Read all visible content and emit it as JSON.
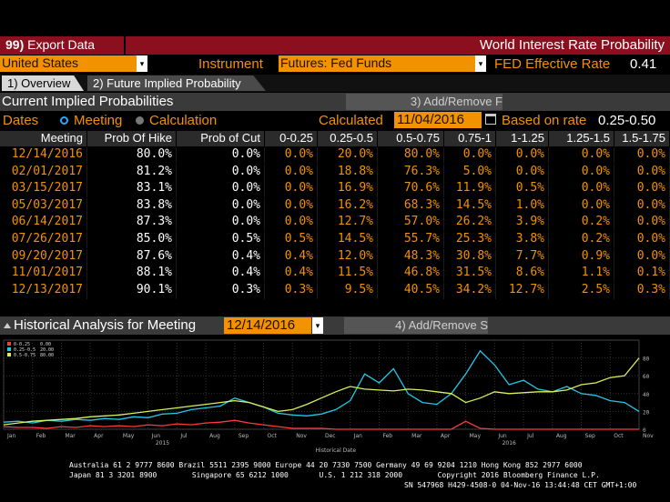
{
  "top": {
    "menu_key": "99)",
    "menu_label": "Export Data",
    "title": "World Interest Rate Probability"
  },
  "selector_row": {
    "country": "United States",
    "instrument_label": "Instrument",
    "instrument_value": "Futures: Fed Funds",
    "fed_rate_label": "FED Effective Rate",
    "fed_rate_value": "0.41"
  },
  "tabs": [
    {
      "label": "1) Overview",
      "active": true
    },
    {
      "label": "2) Future Implied Probability",
      "active": false
    }
  ],
  "section1": {
    "title": "Current Implied Probabilities",
    "add_remove": "3) Add/Remove F"
  },
  "dates_row": {
    "dates_label": "Dates",
    "meeting_label": "Meeting",
    "calculation_label": "Calculation",
    "calculated_label": "Calculated",
    "calculated_value": "11/04/2016",
    "based_label": "Based on rate",
    "based_value": "0.25-0.50"
  },
  "table": {
    "headers": [
      "Meeting",
      "Prob Of Hike",
      "Prob of Cut",
      "0-0.25",
      "0.25-0.5",
      "0.5-0.75",
      "0.75-1",
      "1-1.25",
      "1.25-1.5",
      "1.5-1.75"
    ],
    "rows": [
      [
        "12/14/2016",
        "80.0%",
        "0.0%",
        "0.0%",
        "20.0%",
        "80.0%",
        "0.0%",
        "0.0%",
        "0.0%",
        "0.0%"
      ],
      [
        "02/01/2017",
        "81.2%",
        "0.0%",
        "0.0%",
        "18.8%",
        "76.3%",
        "5.0%",
        "0.0%",
        "0.0%",
        "0.0%"
      ],
      [
        "03/15/2017",
        "83.1%",
        "0.0%",
        "0.0%",
        "16.9%",
        "70.6%",
        "11.9%",
        "0.5%",
        "0.0%",
        "0.0%"
      ],
      [
        "05/03/2017",
        "83.8%",
        "0.0%",
        "0.0%",
        "16.2%",
        "68.3%",
        "14.5%",
        "1.0%",
        "0.0%",
        "0.0%"
      ],
      [
        "06/14/2017",
        "87.3%",
        "0.0%",
        "0.0%",
        "12.7%",
        "57.0%",
        "26.2%",
        "3.9%",
        "0.2%",
        "0.0%"
      ],
      [
        "07/26/2017",
        "85.0%",
        "0.5%",
        "0.5%",
        "14.5%",
        "55.7%",
        "25.3%",
        "3.8%",
        "0.2%",
        "0.0%"
      ],
      [
        "09/20/2017",
        "87.6%",
        "0.4%",
        "0.4%",
        "12.0%",
        "48.3%",
        "30.8%",
        "7.7%",
        "0.9%",
        "0.0%"
      ],
      [
        "11/01/2017",
        "88.1%",
        "0.4%",
        "0.4%",
        "11.5%",
        "46.8%",
        "31.5%",
        "8.6%",
        "1.1%",
        "0.1%"
      ],
      [
        "12/13/2017",
        "90.1%",
        "0.3%",
        "0.3%",
        "9.5%",
        "40.5%",
        "34.2%",
        "12.7%",
        "2.5%",
        "0.3%"
      ]
    ]
  },
  "section2": {
    "title": "Historical Analysis for Meeting",
    "meeting_value": "12/14/2016",
    "add_remove": "4) Add/Remove S"
  },
  "chart_data": {
    "type": "line",
    "xlabel": "Historical Date",
    "year_labels": [
      "2015",
      "2016"
    ],
    "month_ticks": [
      "Jan",
      "Feb",
      "Mar",
      "Apr",
      "May",
      "Jun",
      "Jul",
      "Aug",
      "Sep",
      "Oct",
      "Nov",
      "Dec",
      "Jan",
      "Feb",
      "Mar",
      "Apr",
      "May",
      "Jun",
      "Jul",
      "Aug",
      "Sep",
      "Oct",
      "Nov"
    ],
    "ylim": [
      0,
      100
    ],
    "yticks": [
      "0",
      "20",
      "40",
      "60",
      "80"
    ],
    "legend": [
      {
        "name": "0-0.25",
        "value": "0.00",
        "color": "#ff3b3b"
      },
      {
        "name": "0.25-0.5",
        "value": "20.00",
        "color": "#22c8e8"
      },
      {
        "name": "0.5-0.75",
        "value": "80.00",
        "color": "#d8f05a"
      }
    ],
    "x": [
      0,
      0.5,
      1,
      1.5,
      2,
      2.5,
      3,
      3.5,
      4,
      4.5,
      5,
      5.5,
      6,
      6.5,
      7,
      7.5,
      8,
      8.5,
      9,
      9.5,
      10,
      10.5,
      11,
      11.5,
      12,
      12.5,
      13,
      13.5,
      14,
      14.5,
      15,
      15.5,
      16,
      16.5,
      17,
      17.5,
      18,
      18.5,
      19,
      19.5,
      20,
      20.5,
      21,
      21.5,
      22
    ],
    "series": [
      {
        "name": "0-0.25",
        "color": "#ff3b3b",
        "values": [
          3,
          2,
          2,
          1,
          3,
          2,
          4,
          3,
          4,
          3,
          5,
          4,
          6,
          5,
          7,
          8,
          10,
          7,
          5,
          3,
          1,
          1,
          1,
          0,
          0,
          0,
          0,
          0,
          0,
          0,
          0,
          0,
          9,
          1,
          0,
          0,
          0,
          0,
          0,
          0,
          0,
          0,
          0,
          0,
          0
        ]
      },
      {
        "name": "0.25-0.5",
        "color": "#22c8e8",
        "values": [
          8,
          9,
          7,
          10,
          9,
          11,
          10,
          12,
          11,
          14,
          13,
          17,
          18,
          22,
          24,
          26,
          35,
          30,
          25,
          18,
          16,
          15,
          17,
          22,
          32,
          62,
          52,
          68,
          40,
          30,
          28,
          40,
          62,
          88,
          72,
          50,
          55,
          45,
          42,
          48,
          40,
          38,
          32,
          30,
          20
        ]
      },
      {
        "name": "0.5-0.75",
        "color": "#d8f05a",
        "values": [
          5,
          7,
          9,
          10,
          11,
          12,
          14,
          15,
          16,
          18,
          20,
          22,
          24,
          26,
          28,
          30,
          32,
          30,
          25,
          20,
          22,
          28,
          35,
          42,
          48,
          45,
          44,
          43,
          45,
          44,
          42,
          40,
          30,
          35,
          42,
          40,
          41,
          42,
          42,
          44,
          50,
          52,
          58,
          60,
          80
        ]
      }
    ]
  },
  "footer": {
    "line1": "Australia 61 2 9777 8600 Brazil 5511 2395 9000 Europe 44 20 7330 7500 Germany 49 69 9204 1210 Hong Kong 852 2977 6000",
    "line2": "Japan 81 3 3201 8900        Singapore 65 6212 1000       U.S. 1 212 318 2000        Copyright 2016 Bloomberg Finance L.P.",
    "line3": "SN 547968 H429-4508-0 04-Nov-16 13:44:48 CET  GMT+1:00"
  }
}
